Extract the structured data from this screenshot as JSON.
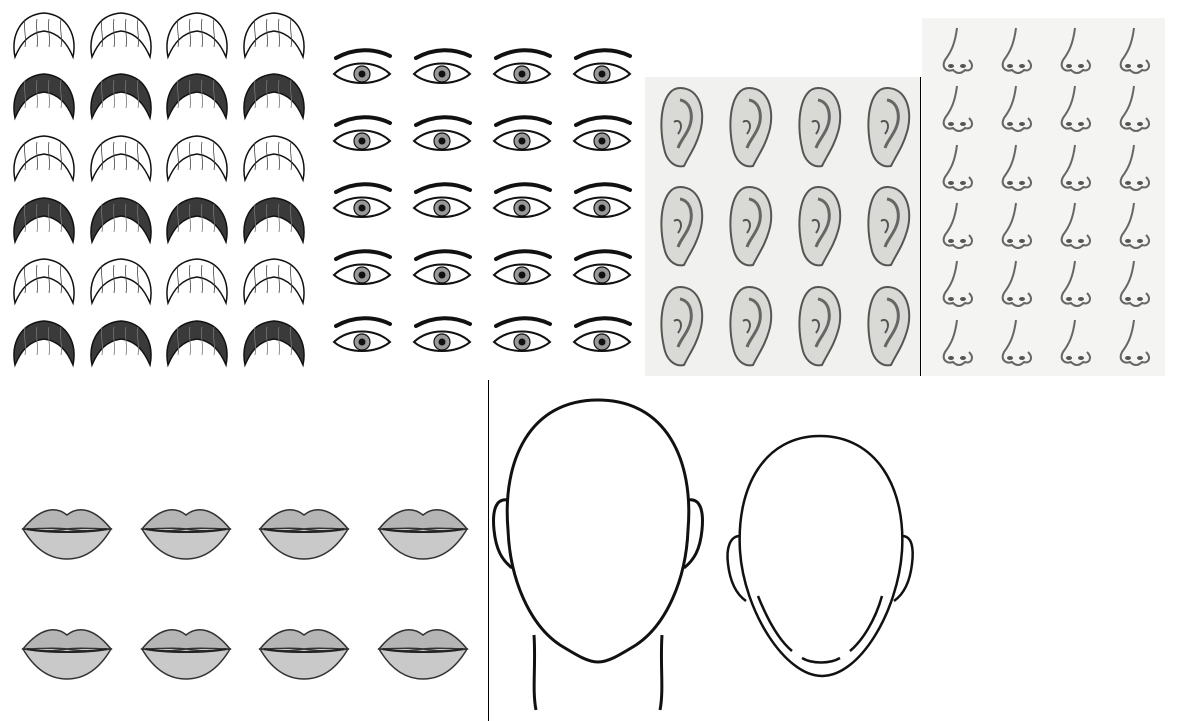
{
  "collage": {
    "panels": [
      {
        "id": "hair",
        "kind": "hairstyle-sheet",
        "rows": 6,
        "cols": 4
      },
      {
        "id": "eyes",
        "kind": "eye-sheet",
        "rows": 5,
        "cols": 4
      },
      {
        "id": "ears",
        "kind": "ear-sheet",
        "rows": 3,
        "cols": 4
      },
      {
        "id": "noses",
        "kind": "nose-sheet",
        "rows": 6,
        "cols": 4
      },
      {
        "id": "lips",
        "kind": "lips-sheet",
        "rows": 2,
        "cols": 4
      },
      {
        "id": "heads",
        "kind": "blank-head-outlines",
        "count": 2
      }
    ],
    "colors": {
      "background": "#ffffff",
      "ink": "#111111",
      "pencil_shade": "#8a8a8a",
      "ear_sheet_bg": "#f1f1ef",
      "nose_sheet_bg": "#f4f4f2"
    }
  }
}
